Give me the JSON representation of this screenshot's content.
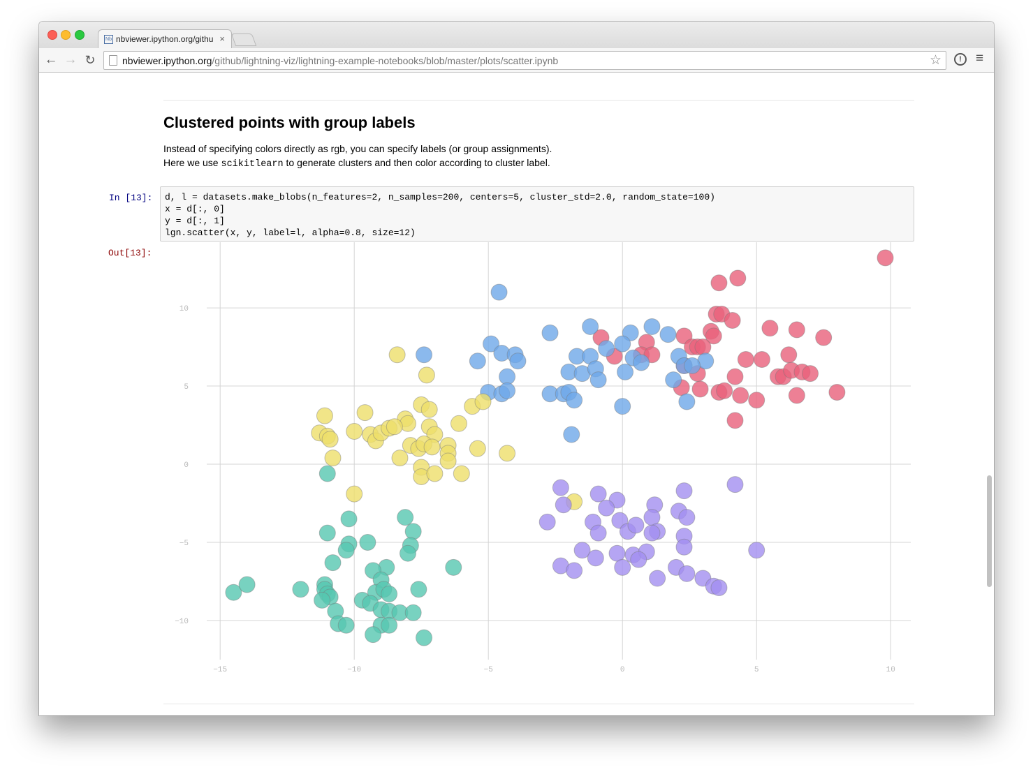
{
  "browser": {
    "tab_title": "nbviewer.ipython.org/github/lightning-viz",
    "tab_favicon": "nbviewer-favicon",
    "url_host": "nbviewer.ipython.org",
    "url_path": "/github/lightning-viz/lightning-example-notebooks/blob/master/plots/scatter.ipynb",
    "icons": {
      "back": "←",
      "forward": "→",
      "reload": "↻",
      "star": "☆",
      "ext": "!",
      "menu": "≡",
      "close": "×"
    }
  },
  "notebook": {
    "heading": "Clustered points with group labels",
    "para1": "Instead of specifying colors directly as rgb, you can specify labels (or group assignments).",
    "para2_before": "Here we use ",
    "para2_code": "scikitlearn",
    "para2_after": " to generate clusters and then color according to cluster label.",
    "in_prompt": "In [13]:",
    "out_prompt": "Out[13]:",
    "code_lines": [
      "d, l = datasets.make_blobs(n_features=2, n_samples=200, centers=5, cluster_std=2.0, random_state=100)",
      "x = d[:, 0]",
      "y = d[:, 1]",
      "lgn.scatter(x, y, label=l, alpha=0.8, size=12)"
    ]
  },
  "chart_data": {
    "type": "scatter",
    "xlim": [
      -15.5,
      10.75
    ],
    "ylim": [
      -12.5,
      14.2
    ],
    "xticks": [
      -15,
      -10,
      -5,
      0,
      5,
      10
    ],
    "yticks": [
      -10,
      -5,
      0,
      5,
      10
    ],
    "xtick_labels": [
      "−15",
      "−10",
      "−5",
      "0",
      "5",
      "10"
    ],
    "ytick_labels": [
      "−10",
      "−5",
      "0",
      "5",
      "10"
    ],
    "grid": true,
    "alpha": 0.8,
    "series": [
      {
        "color": "#e8607b",
        "points": [
          [
            9.8,
            13.2
          ],
          [
            3.6,
            11.6
          ],
          [
            4.3,
            11.9
          ],
          [
            3.5,
            9.6
          ],
          [
            3.7,
            9.6
          ],
          [
            4.1,
            9.2
          ],
          [
            5.5,
            8.7
          ],
          [
            6.5,
            8.6
          ],
          [
            7.5,
            8.1
          ],
          [
            2.3,
            8.2
          ],
          [
            3.3,
            8.5
          ],
          [
            3.4,
            8.2
          ],
          [
            -0.8,
            8.1
          ],
          [
            0.9,
            7.8
          ],
          [
            2.6,
            7.5
          ],
          [
            2.8,
            7.5
          ],
          [
            3.0,
            7.5
          ],
          [
            -0.3,
            6.9
          ],
          [
            0.7,
            7.0
          ],
          [
            1.1,
            7.0
          ],
          [
            4.6,
            6.7
          ],
          [
            5.2,
            6.7
          ],
          [
            6.2,
            7.0
          ],
          [
            2.3,
            6.3
          ],
          [
            2.8,
            5.8
          ],
          [
            4.2,
            5.6
          ],
          [
            5.8,
            5.6
          ],
          [
            6.0,
            5.6
          ],
          [
            6.3,
            6.0
          ],
          [
            6.7,
            5.9
          ],
          [
            7.0,
            5.8
          ],
          [
            2.2,
            4.9
          ],
          [
            2.9,
            4.8
          ],
          [
            3.6,
            4.6
          ],
          [
            3.8,
            4.7
          ],
          [
            4.4,
            4.4
          ],
          [
            5.0,
            4.1
          ],
          [
            6.5,
            4.4
          ],
          [
            8.0,
            4.6
          ],
          [
            4.2,
            2.8
          ]
        ]
      },
      {
        "color": "#6ea8e8",
        "points": [
          [
            -4.6,
            11.0
          ],
          [
            -2.7,
            8.4
          ],
          [
            -1.2,
            8.8
          ],
          [
            0.3,
            8.4
          ],
          [
            1.1,
            8.8
          ],
          [
            1.7,
            8.3
          ],
          [
            -4.9,
            7.7
          ],
          [
            -4.5,
            7.1
          ],
          [
            -4.0,
            7.0
          ],
          [
            -7.4,
            7.0
          ],
          [
            -5.4,
            6.6
          ],
          [
            -3.9,
            6.6
          ],
          [
            -1.7,
            6.9
          ],
          [
            -1.2,
            6.9
          ],
          [
            -0.6,
            7.4
          ],
          [
            0.0,
            7.7
          ],
          [
            0.4,
            6.8
          ],
          [
            0.7,
            6.5
          ],
          [
            2.1,
            6.9
          ],
          [
            3.1,
            6.6
          ],
          [
            -2.0,
            5.9
          ],
          [
            -1.5,
            5.8
          ],
          [
            -1.0,
            6.1
          ],
          [
            0.1,
            5.9
          ],
          [
            2.3,
            6.3
          ],
          [
            2.6,
            6.3
          ],
          [
            -4.3,
            5.6
          ],
          [
            -5.0,
            4.6
          ],
          [
            -4.5,
            4.5
          ],
          [
            -4.3,
            4.7
          ],
          [
            -2.7,
            4.5
          ],
          [
            -2.2,
            4.5
          ],
          [
            -2.0,
            4.6
          ],
          [
            -1.8,
            4.1
          ],
          [
            -0.9,
            5.4
          ],
          [
            1.9,
            5.4
          ],
          [
            2.4,
            4.0
          ],
          [
            0.0,
            3.7
          ],
          [
            -1.9,
            1.9
          ]
        ]
      },
      {
        "color": "#eedf6a",
        "points": [
          [
            -8.4,
            7.0
          ],
          [
            -7.3,
            5.7
          ],
          [
            -7.5,
            3.8
          ],
          [
            -7.2,
            3.5
          ],
          [
            -8.1,
            2.9
          ],
          [
            -8.0,
            2.6
          ],
          [
            -7.2,
            2.4
          ],
          [
            -7.0,
            1.9
          ],
          [
            -6.1,
            2.6
          ],
          [
            -5.6,
            3.7
          ],
          [
            -5.2,
            4.0
          ],
          [
            -11.1,
            3.1
          ],
          [
            -11.3,
            2.0
          ],
          [
            -11.0,
            1.8
          ],
          [
            -10.9,
            1.6
          ],
          [
            -10.0,
            2.1
          ],
          [
            -9.6,
            3.3
          ],
          [
            -9.4,
            1.9
          ],
          [
            -9.2,
            1.5
          ],
          [
            -9.0,
            2.0
          ],
          [
            -8.7,
            2.3
          ],
          [
            -8.5,
            2.4
          ],
          [
            -7.9,
            1.2
          ],
          [
            -7.6,
            1.0
          ],
          [
            -7.4,
            1.3
          ],
          [
            -7.1,
            1.1
          ],
          [
            -6.5,
            1.2
          ],
          [
            -6.5,
            0.7
          ],
          [
            -6.5,
            0.2
          ],
          [
            -5.4,
            1.0
          ],
          [
            -4.3,
            0.7
          ],
          [
            -8.3,
            0.4
          ],
          [
            -7.5,
            -0.2
          ],
          [
            -7.5,
            -0.8
          ],
          [
            -7.0,
            -0.6
          ],
          [
            -6.0,
            -0.6
          ],
          [
            -10.8,
            0.4
          ],
          [
            -10.0,
            -1.9
          ],
          [
            -1.8,
            -2.4
          ]
        ]
      },
      {
        "color": "#56c7b0",
        "points": [
          [
            -11.0,
            -0.6
          ],
          [
            -10.2,
            -3.5
          ],
          [
            -11.0,
            -4.4
          ],
          [
            -10.2,
            -5.1
          ],
          [
            -10.3,
            -5.5
          ],
          [
            -9.5,
            -5.0
          ],
          [
            -10.8,
            -6.3
          ],
          [
            -8.1,
            -3.4
          ],
          [
            -7.8,
            -4.3
          ],
          [
            -7.9,
            -5.2
          ],
          [
            -8.0,
            -5.7
          ],
          [
            -6.3,
            -6.6
          ],
          [
            -8.8,
            -6.6
          ],
          [
            -9.3,
            -6.8
          ],
          [
            -9.0,
            -7.4
          ],
          [
            -14.5,
            -8.2
          ],
          [
            -14.0,
            -7.7
          ],
          [
            -12.0,
            -8.0
          ],
          [
            -11.1,
            -7.7
          ],
          [
            -11.1,
            -8.0
          ],
          [
            -11.0,
            -8.3
          ],
          [
            -10.9,
            -8.5
          ],
          [
            -11.2,
            -8.7
          ],
          [
            -9.7,
            -8.7
          ],
          [
            -9.2,
            -8.2
          ],
          [
            -8.9,
            -8.0
          ],
          [
            -8.7,
            -8.3
          ],
          [
            -7.6,
            -8.0
          ],
          [
            -9.4,
            -8.9
          ],
          [
            -9.0,
            -9.3
          ],
          [
            -8.7,
            -9.4
          ],
          [
            -8.3,
            -9.5
          ],
          [
            -10.7,
            -9.4
          ],
          [
            -10.6,
            -10.2
          ],
          [
            -10.3,
            -10.3
          ],
          [
            -9.0,
            -10.3
          ],
          [
            -8.7,
            -10.3
          ],
          [
            -9.3,
            -10.9
          ],
          [
            -7.4,
            -11.1
          ],
          [
            -7.8,
            -9.5
          ]
        ]
      },
      {
        "color": "#a38ef0",
        "points": [
          [
            4.2,
            -1.3
          ],
          [
            -2.3,
            -1.5
          ],
          [
            2.3,
            -1.7
          ],
          [
            -0.9,
            -1.9
          ],
          [
            -0.2,
            -2.3
          ],
          [
            -0.6,
            -2.8
          ],
          [
            -2.2,
            -2.6
          ],
          [
            1.2,
            -2.6
          ],
          [
            2.1,
            -3.0
          ],
          [
            2.4,
            -3.4
          ],
          [
            -2.8,
            -3.7
          ],
          [
            -1.1,
            -3.7
          ],
          [
            -0.1,
            -3.6
          ],
          [
            -0.9,
            -4.4
          ],
          [
            0.2,
            -4.3
          ],
          [
            0.5,
            -3.9
          ],
          [
            1.1,
            -3.4
          ],
          [
            1.3,
            -4.3
          ],
          [
            1.1,
            -4.4
          ],
          [
            2.3,
            -4.6
          ],
          [
            -1.5,
            -5.5
          ],
          [
            -0.2,
            -5.7
          ],
          [
            0.4,
            -5.8
          ],
          [
            0.9,
            -5.6
          ],
          [
            -1.0,
            -6.0
          ],
          [
            0.6,
            -6.1
          ],
          [
            2.3,
            -5.3
          ],
          [
            -2.3,
            -6.5
          ],
          [
            -1.8,
            -6.8
          ],
          [
            0.0,
            -6.6
          ],
          [
            1.3,
            -7.3
          ],
          [
            2.0,
            -6.6
          ],
          [
            2.4,
            -7.0
          ],
          [
            3.0,
            -7.3
          ],
          [
            3.4,
            -7.8
          ],
          [
            3.6,
            -7.9
          ],
          [
            5.0,
            -5.5
          ]
        ]
      }
    ]
  }
}
